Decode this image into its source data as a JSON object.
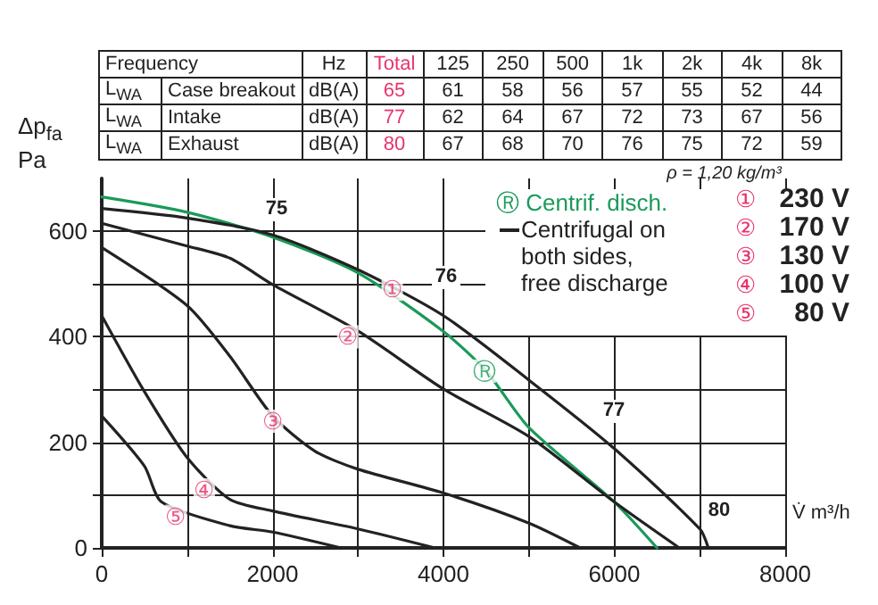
{
  "chart_data": {
    "type": "line",
    "xlabel": "V̇ m³/h",
    "ylabel": "Δp$_{fa}$ Pa",
    "grid": true,
    "marker": "none",
    "line_style": "solid",
    "xlim": [
      0,
      8000
    ],
    "ylim": [
      0,
      700
    ],
    "xticks": [
      0,
      {
        "value": 1000,
        "label": null
      },
      2000,
      {
        "value": 3000,
        "label": null
      },
      4000,
      {
        "value": 5000,
        "label": null
      },
      6000,
      {
        "value": 7000,
        "label": null
      },
      8000
    ],
    "yticks": [
      0,
      {
        "value": 100,
        "label": null
      },
      200,
      {
        "value": 300,
        "label": null
      },
      400,
      {
        "value": 500,
        "label": null
      },
      600
    ],
    "series": [
      {
        "color": "#1a9a5a",
        "x": [
          0,
          1000,
          2000,
          3000,
          4000,
          4500,
          5000,
          6000,
          6500
        ],
        "values": [
          665,
          636,
          589,
          521,
          410,
          335,
          228,
          87,
          0
        ]
      },
      {
        "color": "#222222",
        "x": [
          0,
          1000,
          2000,
          3000,
          4000,
          5000,
          6000,
          7000,
          7100
        ],
        "values": [
          643,
          625,
          593,
          527,
          440,
          318,
          188,
          36,
          0
        ]
      },
      {
        "color": "#222222",
        "x": [
          0,
          1000,
          1500,
          2000,
          3000,
          4000,
          5000,
          6000,
          6760
        ],
        "values": [
          615,
          572,
          549,
          499,
          411,
          301,
          211,
          87,
          0
        ]
      },
      {
        "color": "#222222",
        "x": [
          0,
          1000,
          1500,
          2000,
          2500,
          3000,
          4000,
          5000,
          5600
        ],
        "values": [
          569,
          459,
          363,
          250,
          183,
          149,
          104,
          47,
          0
        ]
      },
      {
        "color": "#222222",
        "x": [
          0,
          500,
          1000,
          1500,
          2000,
          3000,
          3900
        ],
        "values": [
          440,
          296,
          171,
          92,
          70,
          36,
          0
        ]
      },
      {
        "color": "#222222",
        "x": [
          0,
          500,
          700,
          1500,
          2000,
          2800
        ],
        "values": [
          250,
          155,
          87,
          42,
          30,
          0
        ]
      }
    ],
    "annotations": [
      "Frequency\t\tHz\tTotal\t125\t250\t500\t1k\t2k\t4k\t8k",
      "L$_{WA}$\tCase breakout\tdB(A)\t65\t61\t58\t56\t57\t55\t52\t44",
      "L$_{WA}$\tIntake\tdB(A)\t77\t62\t64\t67\t72\t73\t67\t56",
      "L$_{WA}$\tExhaust\tdB(A)\t80\t67\t68\t70\t76\t75\t72\t59",
      "ρ = 1,20 kg/m³",
      "Ⓡ Centrif. disch.",
      "Centrifugal on both sides, free discharge",
      "① 230 V",
      "② 170 V",
      "③ 130 V",
      "④ 100 V",
      "⑤ 80 V",
      "75",
      "76",
      "77",
      "80",
      {
        "text": "①",
        "x": 3400,
        "y": 490
      },
      {
        "text": "②",
        "x": 2880,
        "y": 400
      },
      {
        "text": "③",
        "x": 2000,
        "y": 240
      },
      {
        "text": "④",
        "x": 1200,
        "y": 110
      },
      {
        "text": "⑤",
        "x": 870,
        "y": 60
      },
      {
        "text": "Ⓡ",
        "x": 4480,
        "y": 335
      }
    ]
  }
}
